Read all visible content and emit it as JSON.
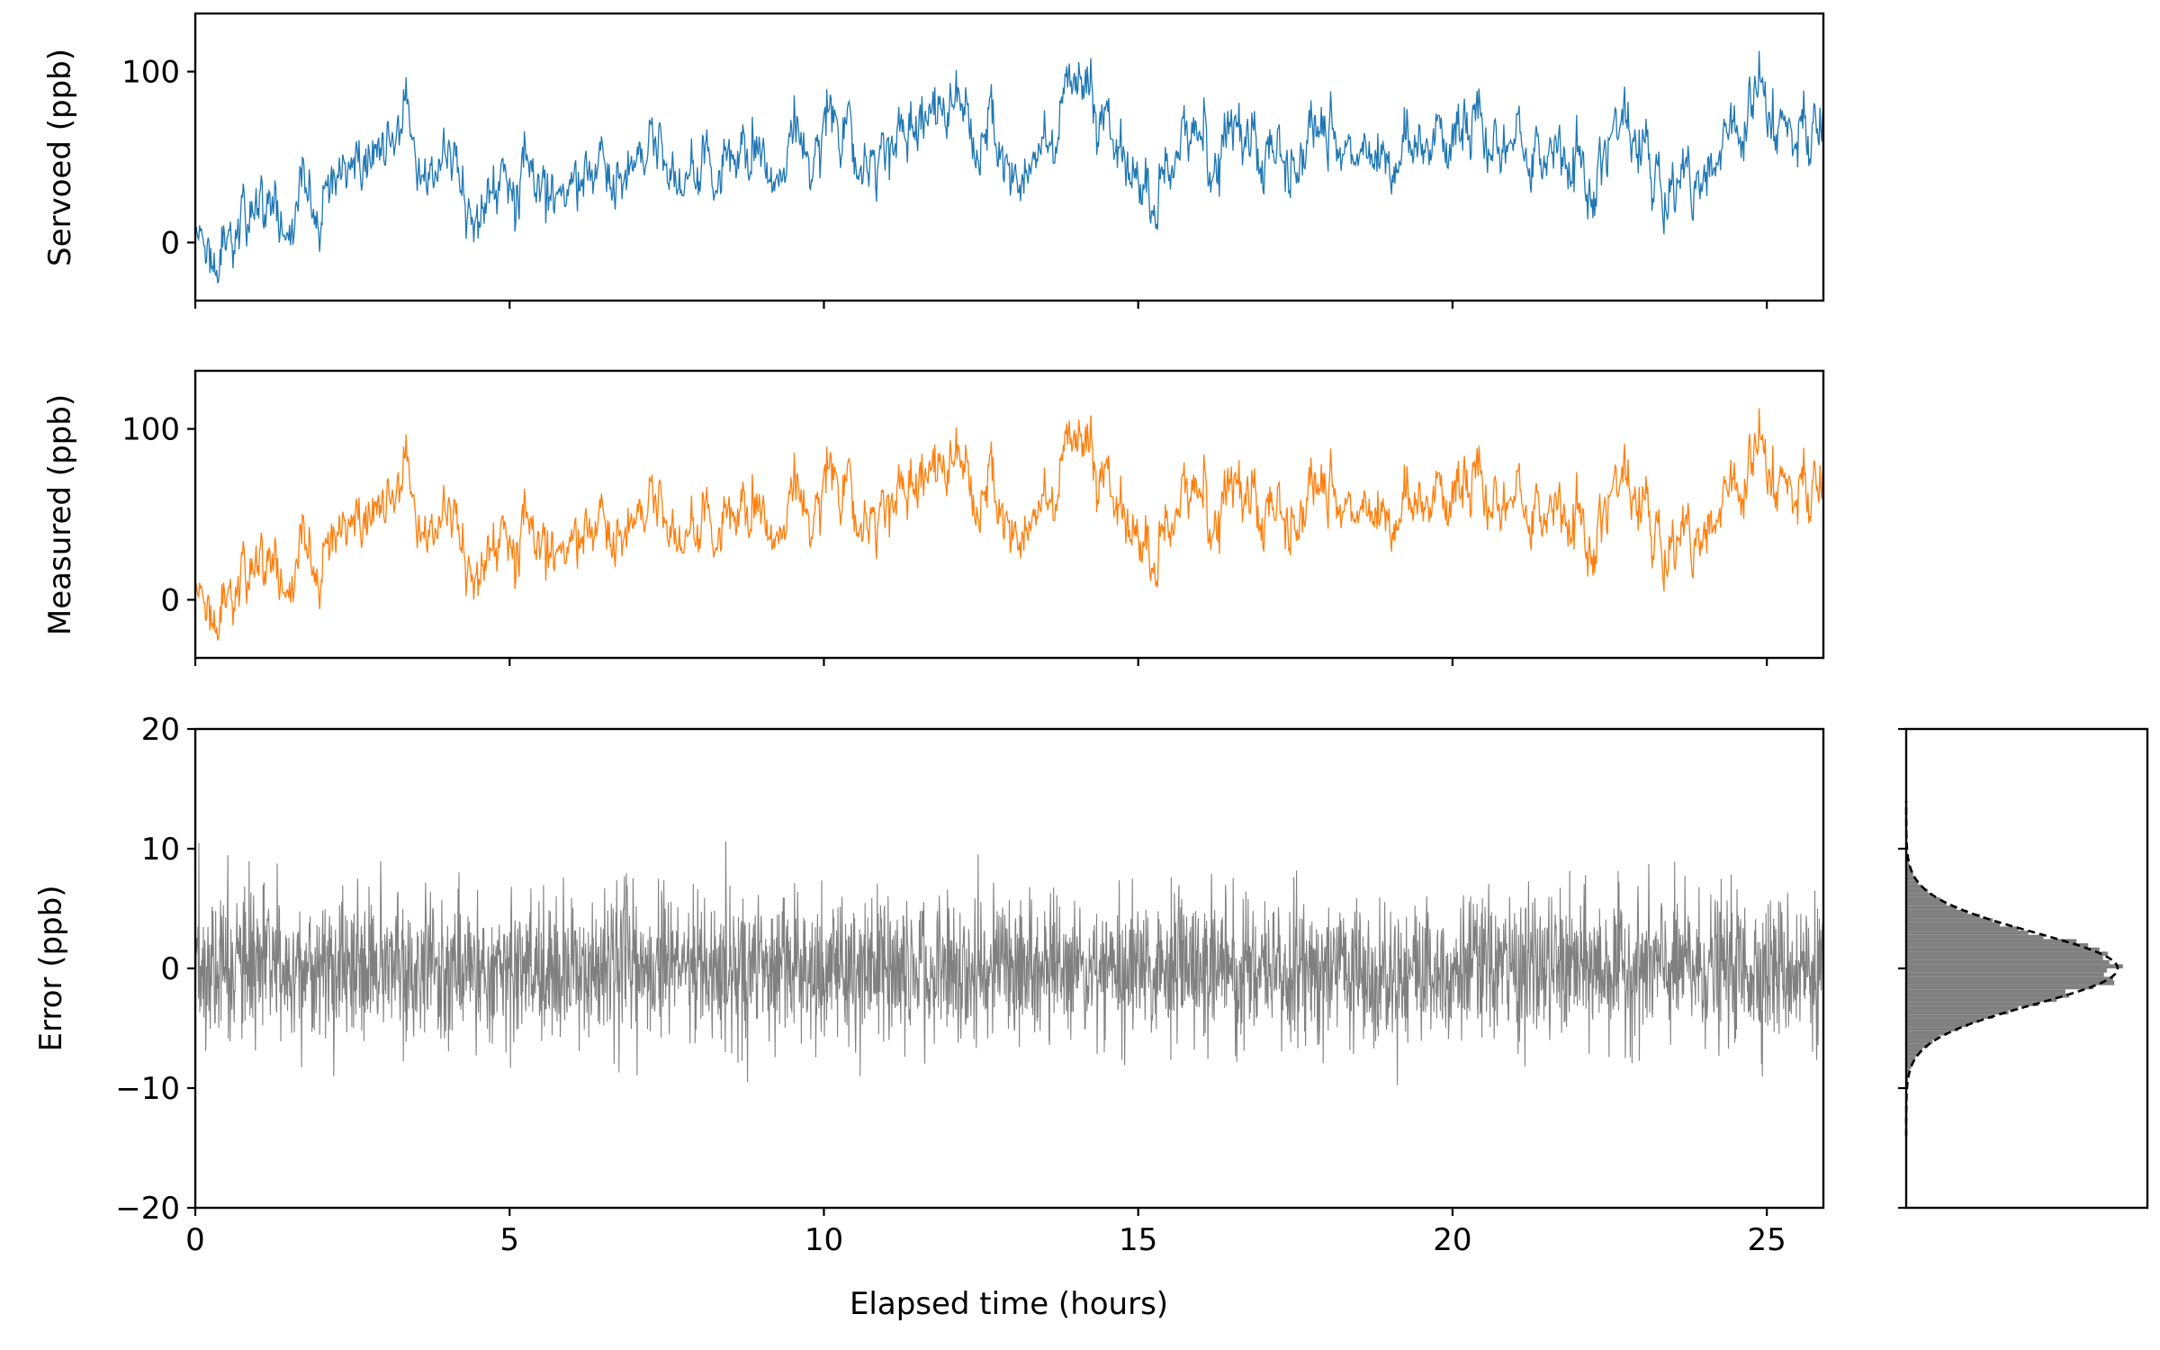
{
  "chart_data": [
    {
      "type": "line",
      "ylabel": "Servoed (ppb)",
      "xlabel": "",
      "xlim": [
        0,
        25.9
      ],
      "ylim": [
        -34,
        134
      ],
      "y_ticks": [
        0,
        100
      ],
      "x_ticks": [
        0,
        5,
        10,
        15,
        20,
        25
      ],
      "x_tick_labels_visible": false,
      "grid": false,
      "color": "#1f77b4",
      "series": [
        {
          "x": [
            0,
            0.5,
            1,
            1.5,
            2,
            2.5,
            3,
            3.3,
            3.5,
            4,
            4.5,
            5,
            5.5,
            6,
            6.5,
            7,
            7.5,
            7.8,
            8,
            8.5,
            9,
            9.5,
            10,
            10.2,
            10.5,
            11,
            11.5,
            12,
            12.5,
            13,
            13.5,
            14,
            14.5,
            15,
            15.3,
            15.5,
            16,
            16.5,
            17,
            17.5,
            18,
            18.5,
            19,
            19.5,
            20,
            20.5,
            21,
            21.5,
            22,
            22.3,
            22.5,
            23,
            23.5,
            24,
            24.5,
            24.8,
            25,
            25.5,
            25.9
          ],
          "values": [
            0,
            0,
            12,
            20,
            28,
            36,
            44,
            72,
            52,
            45,
            40,
            35,
            38,
            32,
            38,
            50,
            52,
            25,
            40,
            45,
            40,
            48,
            62,
            85,
            58,
            60,
            70,
            72,
            65,
            42,
            60,
            72,
            62,
            40,
            30,
            45,
            58,
            60,
            55,
            50,
            60,
            55,
            48,
            55,
            62,
            62,
            55,
            55,
            30,
            32,
            50,
            55,
            50,
            40,
            62,
            100,
            88,
            70,
            55
          ]
        }
      ]
    },
    {
      "type": "line",
      "ylabel": "Measured (ppb)",
      "xlabel": "",
      "xlim": [
        0,
        25.9
      ],
      "ylim": [
        -34,
        134
      ],
      "y_ticks": [
        0,
        100
      ],
      "x_ticks": [
        0,
        5,
        10,
        15,
        20,
        25
      ],
      "x_tick_labels_visible": false,
      "grid": false,
      "color": "#ff7f0e",
      "series": [
        {
          "x": [
            0,
            0.5,
            1,
            1.5,
            2,
            2.5,
            3,
            3.3,
            3.5,
            4,
            4.5,
            5,
            5.5,
            6,
            6.5,
            7,
            7.5,
            7.8,
            8,
            8.5,
            9,
            9.5,
            10,
            10.2,
            10.5,
            11,
            11.5,
            12,
            12.5,
            13,
            13.5,
            14,
            14.5,
            15,
            15.3,
            15.5,
            16,
            16.5,
            17,
            17.5,
            18,
            18.5,
            19,
            19.5,
            20,
            20.5,
            21,
            21.5,
            22,
            22.3,
            22.5,
            23,
            23.5,
            24,
            24.5,
            24.8,
            25,
            25.5,
            25.9
          ],
          "values": [
            0,
            0,
            12,
            20,
            28,
            36,
            44,
            72,
            52,
            45,
            40,
            35,
            38,
            32,
            38,
            50,
            52,
            25,
            40,
            45,
            40,
            48,
            62,
            85,
            58,
            60,
            70,
            72,
            65,
            42,
            60,
            72,
            62,
            40,
            30,
            45,
            58,
            60,
            55,
            50,
            60,
            55,
            48,
            55,
            62,
            62,
            55,
            55,
            30,
            32,
            50,
            55,
            50,
            40,
            62,
            100,
            88,
            70,
            55
          ]
        }
      ]
    },
    {
      "type": "line",
      "ylabel": "Error (ppb)",
      "xlabel": "Elapsed time (hours)",
      "xlim": [
        0,
        25.9
      ],
      "ylim": [
        -20,
        20
      ],
      "y_ticks": [
        -20,
        -10,
        0,
        10,
        20
      ],
      "y_tick_labels": [
        "−20",
        "−10",
        "0",
        "10",
        "20"
      ],
      "x_ticks": [
        0,
        5,
        10,
        15,
        20,
        25
      ],
      "x_tick_labels": [
        "0",
        "5",
        "10",
        "15",
        "20",
        "25"
      ],
      "grid": false,
      "color": "#808080",
      "series": [
        {
          "noise_std": 3.0,
          "mean": 0,
          "range": [
            -14.5,
            16.5
          ]
        }
      ]
    },
    {
      "type": "histogram",
      "orientation": "horizontal",
      "ylim": [
        -20,
        20
      ],
      "y_ticks": [
        -20,
        -10,
        0,
        10,
        20
      ],
      "y_tick_labels_visible": false,
      "color": "#808080",
      "fit": {
        "type": "gaussian",
        "mean": 0,
        "std": 3.0,
        "line_style": "dashed",
        "color": "#000000"
      }
    }
  ]
}
